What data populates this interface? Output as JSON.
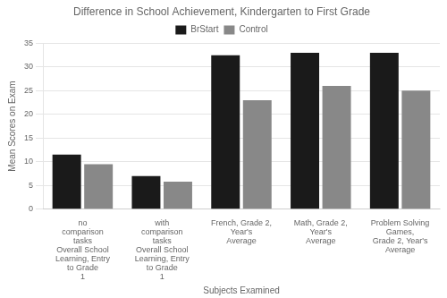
{
  "chart_data": {
    "type": "bar",
    "title": "Difference in School Achievement, Kindergarten to First Grade",
    "xlabel": "Subjects Examined",
    "ylabel": "Mean Scores on Exam",
    "categories": [
      "no\ncomparison\ntasks\nOverall School Learning, Entry to Grade\n1",
      "with\ncomparison\ntasks\nOverall School Learning, Entry to Grade\n1",
      "French, Grade 2, Year's\nAverage",
      "Math, Grade 2, Year's\nAverage",
      "Problem Solving Games,\nGrade 2, Year's Average"
    ],
    "series": [
      {
        "name": "BrStart",
        "color": "#1a1a1a",
        "values": [
          11.5,
          7.0,
          32.5,
          33.0,
          33.0
        ]
      },
      {
        "name": "Control",
        "color": "#888888",
        "values": [
          9.5,
          5.8,
          23.0,
          26.0,
          25.0
        ]
      }
    ],
    "ylim": [
      0,
      35
    ],
    "yticks": [
      0,
      5,
      10,
      15,
      20,
      25,
      30,
      35
    ],
    "grid": true,
    "legend": "top"
  }
}
